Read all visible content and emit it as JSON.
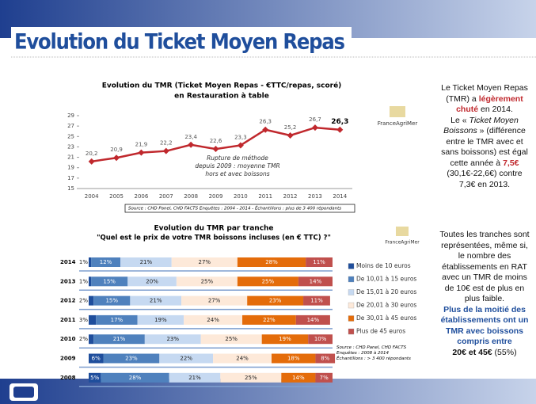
{
  "slide": {
    "title": "Evolution du Ticket Moyen Repas",
    "side1": [
      "Le Ticket Moyen Repas (TMR) a ",
      "légèrement chuté",
      " en 2014.",
      "Le « ",
      "Ticket Moyen Boissons",
      " » (différence entre le TMR avec et sans boissons) est égal cette année à ",
      "7,5€",
      " (30,1€-22,6€) contre 7,3€ en 2013."
    ],
    "side2": [
      "Toutes les tranches sont représentées, même si, le nombre des établissements en RAT avec un TMR de moins de 10€ est de plus en plus faible.",
      "Plus de la moitié des établissements ont un TMR avec boissons compris entre",
      "20€ et 45€",
      " (55%)"
    ],
    "logo1": "FranceAgriMer",
    "logo2": "FranceAgriMer"
  },
  "chart_data": [
    {
      "type": "line",
      "title": "Evolution du TMR (Ticket Moyen Repas - €TTC/repas, scoré)",
      "subtitle": "en Restauration à table",
      "categories": [
        "2004",
        "2005",
        "2006",
        "2007",
        "2008",
        "2009",
        "2010",
        "2011",
        "2012",
        "2013",
        "2014"
      ],
      "values": [
        20.2,
        20.9,
        21.9,
        22.2,
        23.4,
        22.6,
        23.3,
        26.3,
        25.2,
        26.7,
        26.3
      ],
      "value_labels": [
        "20,2",
        "20,9",
        "21,9",
        "22,2",
        "23,4",
        "22,6",
        "23,3",
        "26,3",
        "25,2",
        "26,7",
        "26,3"
      ],
      "color": "#c0282d",
      "ylim": [
        15,
        29
      ],
      "yticks": [
        15,
        17,
        19,
        21,
        23,
        25,
        27,
        29
      ],
      "grid": false,
      "annotation": "Rupture de méthode depuis 2009 : moyenne TMR hors et avec boissons",
      "source": "Source : CHD Panel, CHD FACTS  Enquêtes : 2004 - 2014 - Échantillons : plus de 3 400 répondants"
    },
    {
      "type": "stacked_bar_horizontal",
      "title": "Evolution du TMR par tranche",
      "subtitle": "\"Quel est le prix de votre TMR boissons incluses (en € TTC) ?\"",
      "categories": [
        "2014",
        "2013",
        "2012",
        "2011",
        "2010",
        "2009",
        "2008"
      ],
      "xlim": [
        0,
        100
      ],
      "legend": "right",
      "series": [
        {
          "name": "Moins de 10 euros",
          "color": "#1f4e9c",
          "values": [
            1,
            1,
            2,
            3,
            2,
            6,
            5
          ],
          "value_labels": [
            "1%",
            "1%",
            "2%",
            "3%",
            "2%",
            "6%",
            "5%"
          ]
        },
        {
          "name": "De 10,01 à 15 euros",
          "color": "#4f81bd",
          "values": [
            12,
            15,
            15,
            17,
            21,
            23,
            28
          ],
          "value_labels": [
            "12%",
            "15%",
            "15%",
            "17%",
            "21%",
            "23%",
            "28%"
          ]
        },
        {
          "name": "De 15,01 à 20 euros",
          "color": "#c6d9f1",
          "values": [
            21,
            20,
            21,
            19,
            23,
            22,
            21
          ],
          "value_labels": [
            "21%",
            "20%",
            "21%",
            "19%",
            "23%",
            "22%",
            "21%"
          ]
        },
        {
          "name": "De 20,01 à 30 euros",
          "color": "#fde9d9",
          "values": [
            27,
            25,
            27,
            24,
            25,
            24,
            25
          ],
          "value_labels": [
            "27%",
            "25%",
            "27%",
            "24%",
            "25%",
            "24%",
            "25%"
          ]
        },
        {
          "name": "De 30,01 à 45 euros",
          "color": "#e46c0a",
          "values": [
            28,
            25,
            23,
            22,
            19,
            18,
            14
          ],
          "value_labels": [
            "28%",
            "25%",
            "23%",
            "22%",
            "19%",
            "18%",
            "14%"
          ]
        },
        {
          "name": "Plus de 45 euros",
          "color": "#c0504d",
          "values": [
            11,
            14,
            11,
            14,
            10,
            8,
            7
          ],
          "value_labels": [
            "11%",
            "14%",
            "11%",
            "14%",
            "10%",
            "8%",
            "7%"
          ]
        }
      ],
      "source": "Source : CHD Panel, CHD FACTS Enquêtes : 2008 à 2014 Échantillons : > 3 400 répondants"
    }
  ]
}
